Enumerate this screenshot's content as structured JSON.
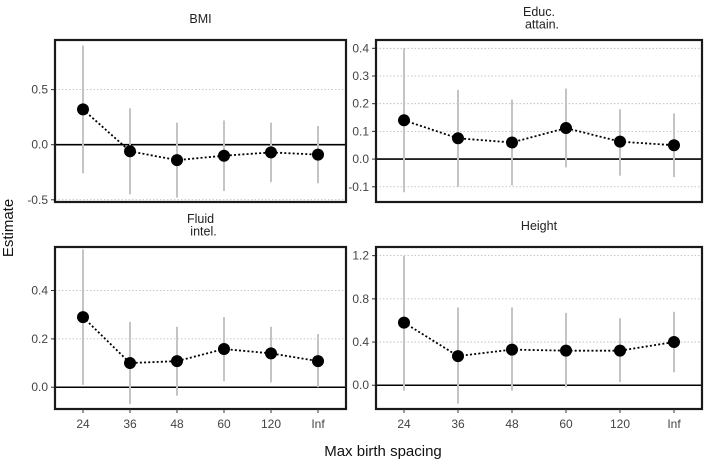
{
  "chart_data": {
    "type": "scatter",
    "xlabel": "Max birth spacing",
    "ylabel": "Estimate",
    "categories": [
      "24",
      "36",
      "48",
      "60",
      "120",
      "Inf"
    ],
    "panels": [
      {
        "title": [
          "BMI"
        ],
        "ylim": [
          -0.52,
          0.95
        ],
        "yticks": [
          -0.5,
          0.0,
          0.5
        ],
        "ytick_labels": [
          "-0.5",
          "0.0",
          "0.5"
        ],
        "estimates": [
          0.32,
          -0.06,
          -0.14,
          -0.1,
          -0.07,
          -0.09
        ],
        "ci_low": [
          -0.26,
          -0.45,
          -0.48,
          -0.42,
          -0.34,
          -0.35
        ],
        "ci_high": [
          0.9,
          0.33,
          0.2,
          0.22,
          0.2,
          0.17
        ]
      },
      {
        "title": [
          "Educ.",
          "attain."
        ],
        "ylim": [
          -0.155,
          0.43
        ],
        "yticks": [
          -0.1,
          0.0,
          0.1,
          0.2,
          0.3,
          0.4
        ],
        "ytick_labels": [
          "-0.1",
          "0.0",
          "0.1",
          "0.2",
          "0.3",
          "0.4"
        ],
        "estimates": [
          0.14,
          0.075,
          0.06,
          0.112,
          0.063,
          0.05
        ],
        "ci_low": [
          -0.12,
          -0.1,
          -0.095,
          -0.03,
          -0.06,
          -0.065
        ],
        "ci_high": [
          0.4,
          0.25,
          0.215,
          0.255,
          0.18,
          0.165
        ]
      },
      {
        "title": [
          "Fluid",
          "intel."
        ],
        "ylim": [
          -0.09,
          0.58
        ],
        "yticks": [
          0.0,
          0.2,
          0.4
        ],
        "ytick_labels": [
          "0.0",
          "0.2",
          "0.4"
        ],
        "estimates": [
          0.29,
          0.1,
          0.108,
          0.158,
          0.14,
          0.108
        ],
        "ci_low": [
          0.01,
          -0.07,
          -0.035,
          0.025,
          0.02,
          0.0
        ],
        "ci_high": [
          0.57,
          0.27,
          0.25,
          0.29,
          0.25,
          0.22
        ]
      },
      {
        "title": [
          "Height"
        ],
        "ylim": [
          -0.22,
          1.28
        ],
        "yticks": [
          0.0,
          0.4,
          0.8,
          1.2
        ],
        "ytick_labels": [
          "0.0",
          "0.4",
          "0.8",
          "1.2"
        ],
        "estimates": [
          0.58,
          0.27,
          0.33,
          0.32,
          0.32,
          0.4
        ],
        "ci_low": [
          -0.05,
          -0.17,
          -0.05,
          -0.02,
          0.03,
          0.12
        ],
        "ci_high": [
          1.2,
          0.72,
          0.72,
          0.67,
          0.62,
          0.68
        ]
      }
    ]
  }
}
